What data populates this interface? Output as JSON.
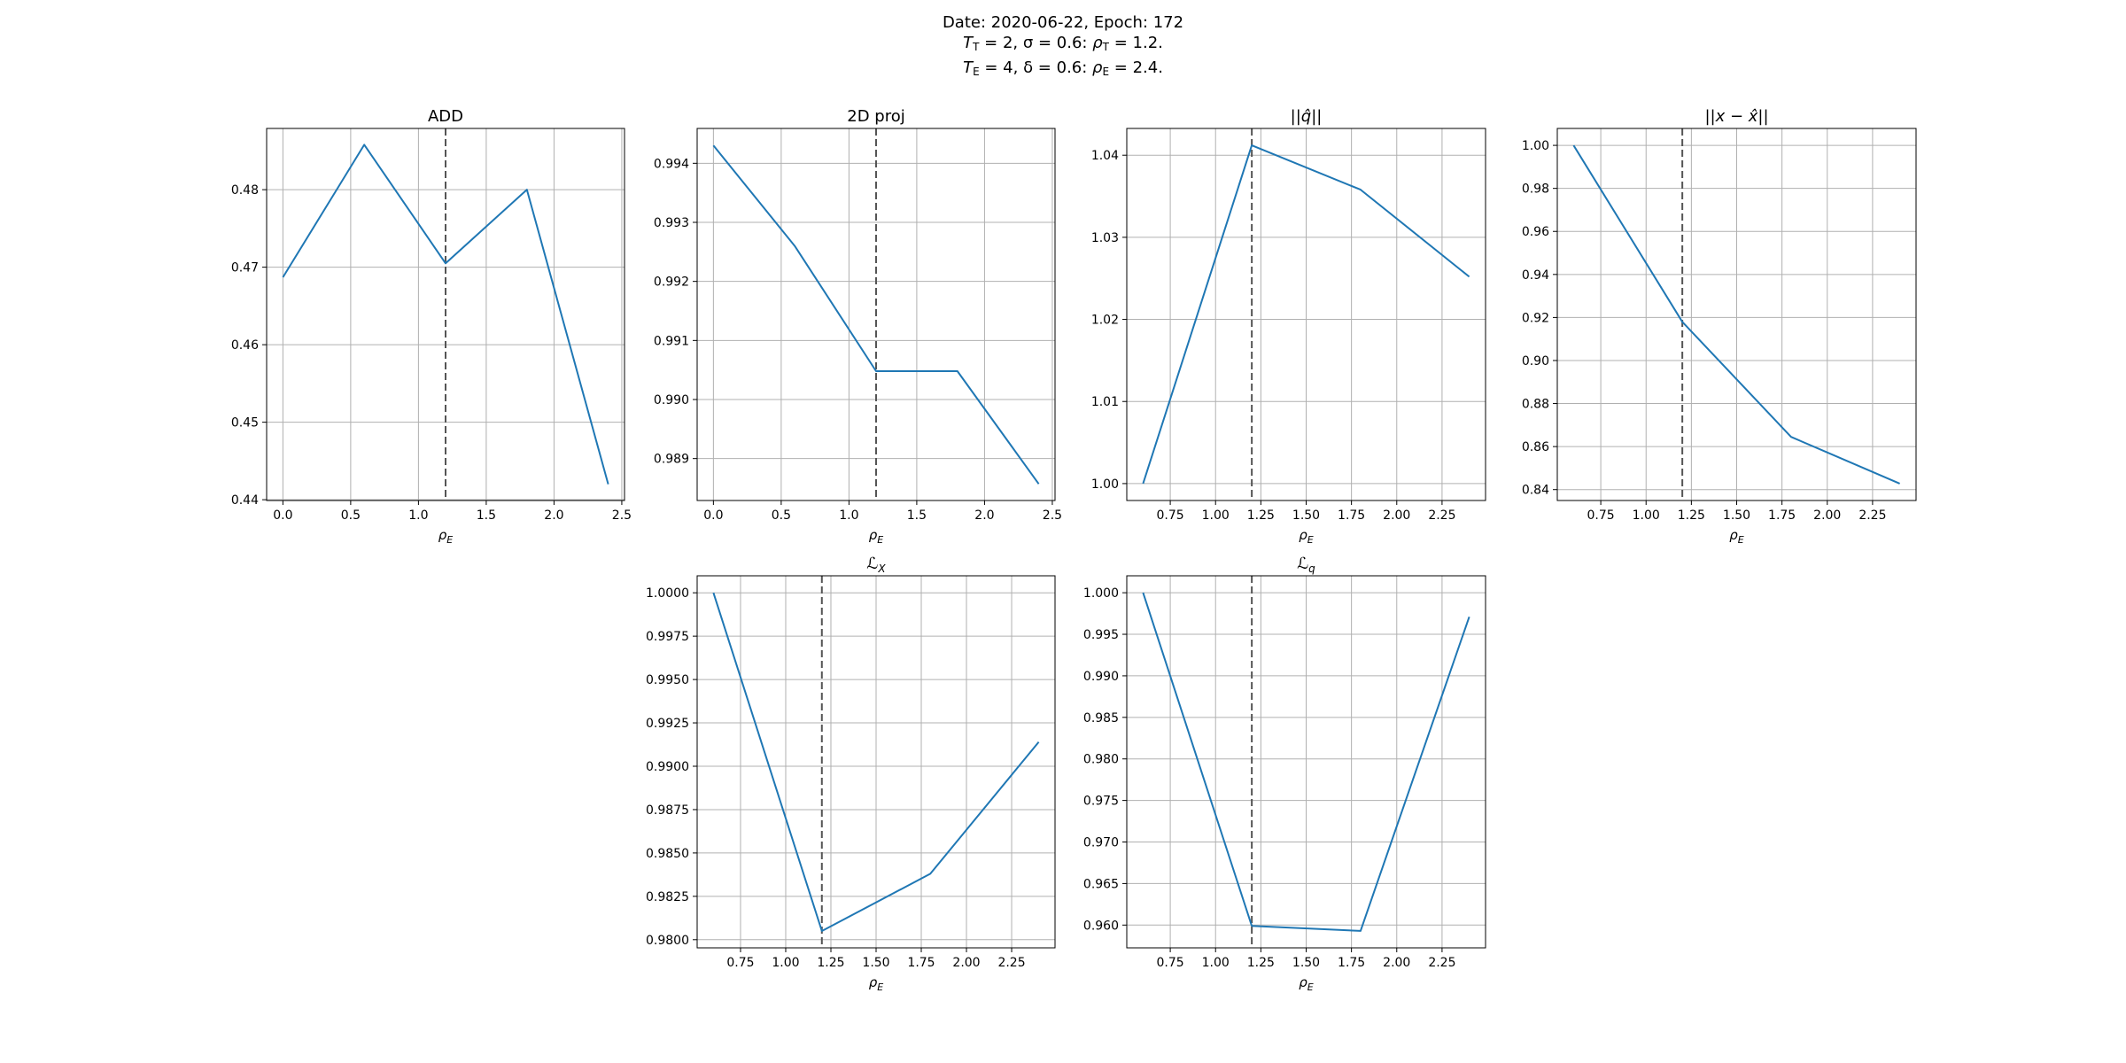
{
  "suptitle": {
    "line1": "Date: 2020-06-22, Epoch: 172",
    "line2": "T_T = 2, σ = 0.6: ρ_T = 1.2.",
    "line3": "T_E = 4, δ = 0.6: ρ_E = 2.4."
  },
  "colors": {
    "series": "#1f77b4",
    "reference_line": "#555555",
    "grid": "#b0b0b0"
  },
  "chart_data": [
    {
      "type": "line",
      "title": "ADD",
      "title_math": false,
      "xlabel": "ρ_E",
      "ylabel": "",
      "grid": true,
      "x": [
        0.0,
        0.6,
        1.2,
        1.8,
        2.4
      ],
      "series": [
        {
          "values": [
            0.4687,
            0.4858,
            0.4705,
            0.48,
            0.442
          ]
        }
      ],
      "vline": 1.2,
      "xlim": [
        -0.12,
        2.52
      ],
      "ylim": [
        0.4399,
        0.4879
      ],
      "xticks": [
        "0.0",
        "0.5",
        "1.0",
        "1.5",
        "2.0",
        "2.5"
      ],
      "yticks": [
        "0.44",
        "0.45",
        "0.46",
        "0.47",
        "0.48"
      ]
    },
    {
      "type": "line",
      "title": "2D proj",
      "title_math": false,
      "xlabel": "ρ_E",
      "ylabel": "",
      "grid": true,
      "x": [
        0.0,
        0.6,
        1.2,
        1.8,
        2.4
      ],
      "series": [
        {
          "values": [
            0.9943,
            0.9926,
            0.99048,
            0.99048,
            0.98857
          ]
        }
      ],
      "vline": 1.2,
      "xlim": [
        -0.12,
        2.52
      ],
      "ylim": [
        0.98829,
        0.99459
      ],
      "xticks": [
        "0.0",
        "0.5",
        "1.0",
        "1.5",
        "2.0",
        "2.5"
      ],
      "yticks": [
        "0.989",
        "0.990",
        "0.991",
        "0.992",
        "0.993",
        "0.994"
      ]
    },
    {
      "type": "line",
      "title": "||q̂||",
      "title_math": true,
      "xlabel": "ρ_E",
      "ylabel": "",
      "grid": true,
      "x": [
        0.6,
        1.2,
        1.8,
        2.4
      ],
      "series": [
        {
          "values": [
            1.0,
            1.0412,
            1.0358,
            1.0252
          ]
        }
      ],
      "vline": 1.2,
      "xlim": [
        0.51,
        2.49
      ],
      "ylim": [
        0.99794,
        1.04326
      ],
      "xticks": [
        "0.75",
        "1.00",
        "1.25",
        "1.50",
        "1.75",
        "2.00",
        "2.25"
      ],
      "yticks": [
        "1.00",
        "1.01",
        "1.02",
        "1.03",
        "1.04"
      ]
    },
    {
      "type": "line",
      "title": "||x − x̂||",
      "title_math": true,
      "xlabel": "ρ_E",
      "ylabel": "",
      "grid": true,
      "x": [
        0.6,
        1.2,
        1.8,
        2.4
      ],
      "series": [
        {
          "values": [
            1.0,
            0.918,
            0.8645,
            0.8428
          ]
        }
      ],
      "vline": 1.2,
      "xlim": [
        0.51,
        2.49
      ],
      "ylim": [
        0.83494,
        1.00786
      ],
      "xticks": [
        "0.75",
        "1.00",
        "1.25",
        "1.50",
        "1.75",
        "2.00",
        "2.25"
      ],
      "yticks": [
        "0.84",
        "0.86",
        "0.88",
        "0.90",
        "0.92",
        "0.94",
        "0.96",
        "0.98",
        "1.00"
      ]
    },
    {
      "type": "line",
      "title": "ℒ",
      "title_sub": "X",
      "title_math": true,
      "xlabel": "ρ_E",
      "ylabel": "",
      "grid": true,
      "x": [
        0.6,
        1.2,
        1.8,
        2.4
      ],
      "series": [
        {
          "values": [
            1.0,
            0.9805,
            0.9838,
            0.9914
          ]
        }
      ],
      "vline": 1.2,
      "xlim": [
        0.51,
        2.49
      ],
      "ylim": [
        0.97953,
        1.00098
      ],
      "xticks": [
        "0.75",
        "1.00",
        "1.25",
        "1.50",
        "1.75",
        "2.00",
        "2.25"
      ],
      "yticks": [
        "0.9800",
        "0.9825",
        "0.9850",
        "0.9875",
        "0.9900",
        "0.9925",
        "0.9950",
        "0.9975",
        "1.0000"
      ]
    },
    {
      "type": "line",
      "title": "ℒ",
      "title_sub": "q",
      "title_math": true,
      "xlabel": "ρ_E",
      "ylabel": "",
      "grid": true,
      "x": [
        0.6,
        1.2,
        1.8,
        2.4
      ],
      "series": [
        {
          "values": [
            1.0,
            0.9599,
            0.9593,
            0.9971
          ]
        }
      ],
      "vline": 1.2,
      "xlim": [
        0.51,
        2.49
      ],
      "ylim": [
        0.95726,
        1.00204
      ],
      "xticks": [
        "0.75",
        "1.00",
        "1.25",
        "1.50",
        "1.75",
        "2.00",
        "2.25"
      ],
      "yticks": [
        "0.960",
        "0.965",
        "0.970",
        "0.975",
        "0.980",
        "0.985",
        "0.990",
        "0.995",
        "1.000"
      ]
    }
  ]
}
